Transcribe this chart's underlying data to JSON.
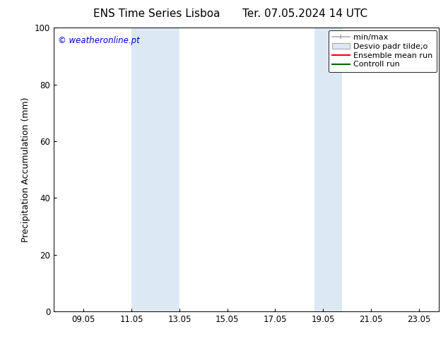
{
  "title_left": "ENS Time Series Lisboa",
  "title_right": "Ter. 07.05.2024 14 UTC",
  "ylabel": "Precipitation Accumulation (mm)",
  "ylim": [
    0,
    100
  ],
  "yticks": [
    0,
    20,
    40,
    60,
    80,
    100
  ],
  "watermark": "© weatheronline.pt",
  "watermark_color": "#0000cc",
  "bg_color": "#ffffff",
  "plot_bg_color": "#ffffff",
  "shaded_bands": [
    {
      "x_start": 11.05,
      "x_end": 13.05
    },
    {
      "x_start": 18.7,
      "x_end": 19.85
    }
  ],
  "shaded_color": "#dce9f5",
  "xlim": [
    7.8,
    23.9
  ],
  "xtick_positions": [
    9.05,
    11.05,
    13.05,
    15.05,
    17.05,
    19.05,
    21.05,
    23.05
  ],
  "xtick_labels": [
    "09.05",
    "11.05",
    "13.05",
    "15.05",
    "17.05",
    "19.05",
    "21.05",
    "23.05"
  ],
  "legend_entries": [
    {
      "label": "min/max",
      "color": "#b0b0b0",
      "linewidth": 1.2,
      "type": "errbar"
    },
    {
      "label": "Desvio padr tilde;o",
      "color": "#dce9f5",
      "edgecolor": "#aaaaaa",
      "type": "patch"
    },
    {
      "label": "Ensemble mean run",
      "color": "#ff0000",
      "linewidth": 1.5,
      "type": "line"
    },
    {
      "label": "Controll run",
      "color": "#006600",
      "linewidth": 1.5,
      "type": "line"
    }
  ],
  "title_fontsize": 11,
  "axis_label_fontsize": 9,
  "tick_fontsize": 8.5,
  "legend_fontsize": 8,
  "watermark_fontsize": 8.5
}
